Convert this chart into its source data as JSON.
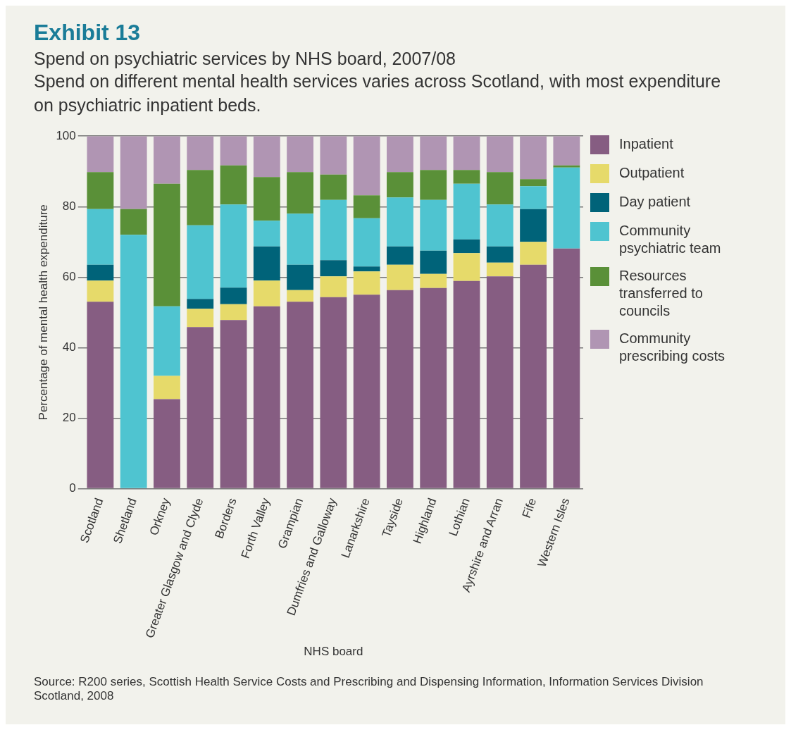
{
  "chart_data": {
    "type": "bar",
    "title": "Exhibit 13",
    "subtitle": "Spend on psychiatric services by NHS board, 2007/08",
    "annotations": [
      "Spend on different mental health services varies across Scotland, with most expenditure on psychiatric inpatient beds.",
      "Source: R200 series, Scottish Health Service Costs and Prescribing and Dispensing Information, Information Services Division Scotland, 2008"
    ],
    "xlabel": "NHS board",
    "ylabel": "Percentage of mental health expenditure",
    "categories": [
      "Scotland",
      "Shetland",
      "Orkney",
      "Greater Glasgow and Clyde",
      "Borders",
      "Forth Valley",
      "Grampian",
      "Dumfries and Galloway",
      "Lanarkshire",
      "Tayside",
      "Highland",
      "Lothian",
      "Ayrshire and Arran",
      "Fife",
      "Western Isles"
    ],
    "stacked": true,
    "ylim": [
      0,
      100
    ],
    "yticks": [
      0,
      20,
      40,
      60,
      80,
      100
    ],
    "grid": "y",
    "legend": "right",
    "series": [
      {
        "name": "Inpatient",
        "color": "#865d82",
        "values": [
          53,
          0,
          25.4,
          45.8,
          47.8,
          51.7,
          53,
          54.3,
          55,
          56.3,
          56.9,
          58.9,
          60.2,
          63.5,
          68.1
        ]
      },
      {
        "name": "Outpatient",
        "color": "#e6da6a",
        "values": [
          6,
          0,
          6.6,
          5.2,
          4.5,
          7.3,
          3.3,
          5.9,
          6.6,
          7.2,
          4,
          7.9,
          3.9,
          6.5,
          0
        ]
      },
      {
        "name": "Day patient",
        "color": "#006379",
        "values": [
          4.5,
          0,
          0,
          2.8,
          4.7,
          9.7,
          7.2,
          4.6,
          1.4,
          5.2,
          6.6,
          3.9,
          4.6,
          9.3,
          0
        ]
      },
      {
        "name": "Community psychiatric team",
        "color": "#4fc4d0",
        "values": [
          15.8,
          72,
          19.7,
          20.9,
          23.6,
          7.3,
          14.5,
          17.1,
          13.7,
          13.9,
          14.4,
          15.8,
          11.9,
          6.5,
          23
        ]
      },
      {
        "name": "Resources transferred to councils",
        "color": "#5a9038",
        "values": [
          10.5,
          7.3,
          34.8,
          15.7,
          11.1,
          12.4,
          11.8,
          7.2,
          6.5,
          7.2,
          8.5,
          3.9,
          9.2,
          2,
          0.6
        ]
      },
      {
        "name": "Community prescribing costs",
        "color": "#b095b3",
        "values": [
          10.2,
          20.7,
          13.5,
          9.6,
          8.3,
          11.6,
          10.2,
          10.9,
          16.8,
          10.2,
          9.6,
          9.6,
          10.2,
          12.2,
          8.3
        ]
      }
    ]
  }
}
